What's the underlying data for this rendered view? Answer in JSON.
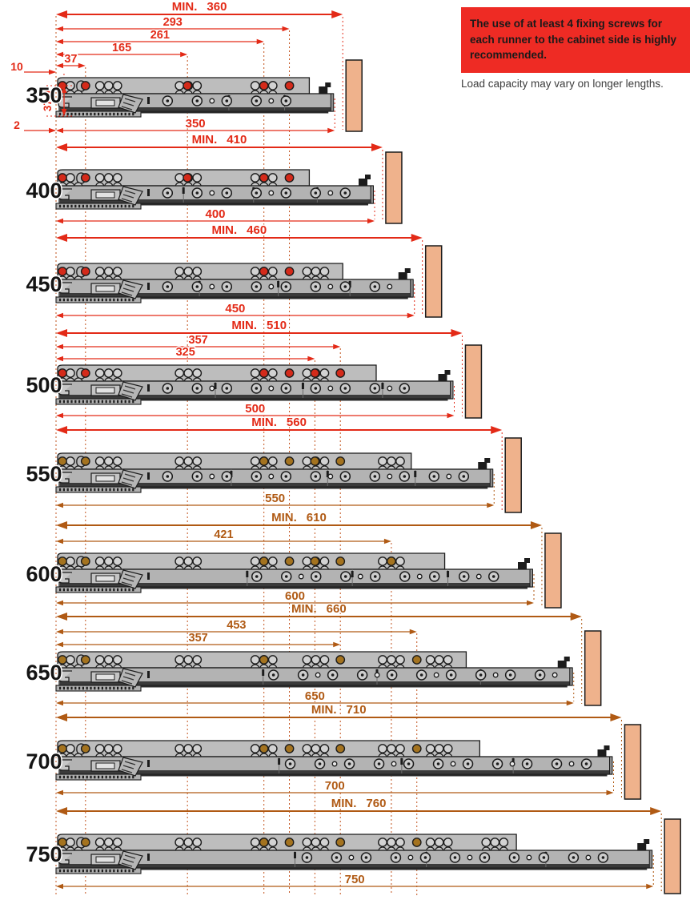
{
  "notice": {
    "text": "The use of at least 4 fixing screws for each runner to the cabinet side is highly recommended.",
    "bg_color": "#ee2b24",
    "text_color": "#1a1a1a"
  },
  "note": "Load capacity may vary on longer lengths.",
  "colors": {
    "red": "#e32a17",
    "brown": "#b05a14",
    "guide": "#c2531d",
    "wood": "#efb28c",
    "rail_light": "#bdbdbd",
    "rail_mid": "#b3b3b3",
    "rail_dark": "#3a3a3a",
    "outline": "#1c1c1c",
    "hole_red": "#d42a1a",
    "hole_brown": "#a4731f",
    "label": "#141414"
  },
  "rows": [
    {
      "label": "350",
      "min": {
        "prefix": "MIN.",
        "value": "360",
        "mm": 360
      },
      "length": {
        "value": "350",
        "mm": 350
      },
      "dims": [
        {
          "value": "293",
          "mm": 293
        },
        {
          "value": "261",
          "mm": 261
        },
        {
          "value": "165",
          "mm": 165
        },
        {
          "value": "37",
          "mm": 37
        },
        {
          "value": "10",
          "mm": 10
        }
      ],
      "side_dims": {
        "height": "37.9",
        "offset": "2"
      },
      "palette": "red",
      "min_palette": "red",
      "hole_marks_mm": [
        8,
        37,
        165,
        261,
        293
      ]
    },
    {
      "label": "400",
      "min": {
        "prefix": "MIN.",
        "value": "410",
        "mm": 410
      },
      "length": {
        "value": "400",
        "mm": 400
      },
      "dims": [],
      "palette": "red",
      "hole_marks_mm": [
        8,
        37,
        165,
        261,
        293
      ]
    },
    {
      "label": "450",
      "min": {
        "prefix": "MIN.",
        "value": "460",
        "mm": 460
      },
      "length": {
        "value": "450",
        "mm": 450
      },
      "dims": [],
      "palette": "red",
      "hole_marks_mm": [
        8,
        37,
        261,
        293
      ]
    },
    {
      "label": "500",
      "min": {
        "prefix": "MIN.",
        "value": "510",
        "mm": 510
      },
      "length": {
        "value": "500",
        "mm": 500
      },
      "dims": [
        {
          "value": "357",
          "mm": 357
        },
        {
          "value": "325",
          "mm": 325
        }
      ],
      "palette": "red",
      "hole_marks_mm": [
        8,
        37,
        261,
        293,
        325,
        357
      ]
    },
    {
      "label": "550",
      "min": {
        "prefix": "MIN.",
        "value": "560",
        "mm": 560
      },
      "length": {
        "value": "550",
        "mm": 550
      },
      "dims": [],
      "palette": "brown",
      "min_palette": "red",
      "hole_marks_mm": [
        8,
        37,
        261,
        293,
        325,
        357
      ]
    },
    {
      "label": "600",
      "min": {
        "prefix": "MIN.",
        "value": "610",
        "mm": 610
      },
      "length": {
        "value": "600",
        "mm": 600
      },
      "dims": [
        {
          "value": "421",
          "mm": 421
        }
      ],
      "palette": "brown",
      "hole_marks_mm": [
        8,
        37,
        261,
        293,
        325,
        357,
        421
      ]
    },
    {
      "label": "650",
      "min": {
        "prefix": "MIN.",
        "value": "660",
        "mm": 660
      },
      "length": {
        "value": "650",
        "mm": 650
      },
      "dims": [
        {
          "value": "453",
          "mm": 453
        },
        {
          "value": "357",
          "mm": 357
        }
      ],
      "palette": "brown",
      "hole_marks_mm": [
        8,
        37,
        261,
        357,
        453
      ]
    },
    {
      "label": "700",
      "min": {
        "prefix": "MIN.",
        "value": "710",
        "mm": 710
      },
      "length": {
        "value": "700",
        "mm": 700
      },
      "dims": [],
      "palette": "brown",
      "hole_marks_mm": [
        8,
        37,
        261,
        293,
        357,
        453
      ]
    },
    {
      "label": "750",
      "min": {
        "prefix": "MIN.",
        "value": "760",
        "mm": 760
      },
      "length": {
        "value": "750",
        "mm": 750
      },
      "dims": [],
      "palette": "brown",
      "hole_marks_mm": [
        8,
        37,
        261,
        293,
        357,
        453
      ]
    }
  ]
}
